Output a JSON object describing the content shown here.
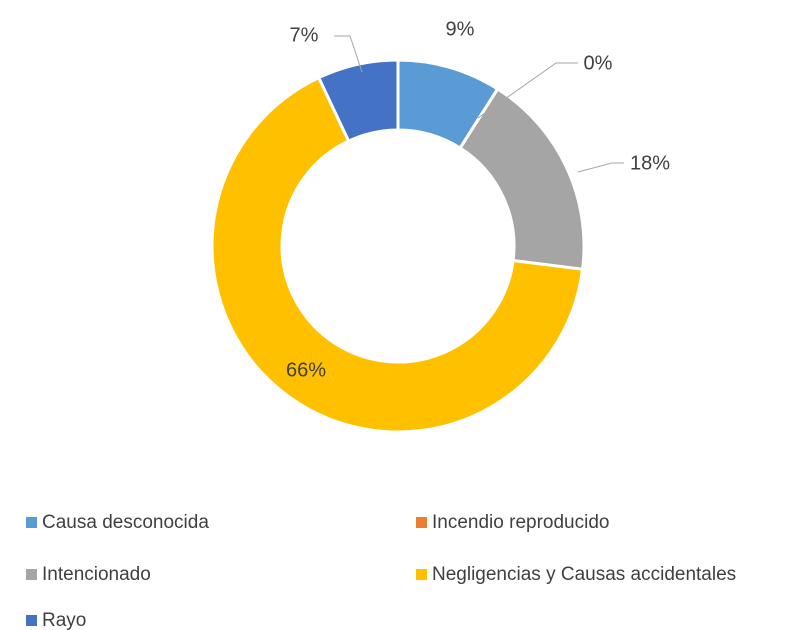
{
  "chart_data": {
    "type": "donut",
    "categories": [
      "Causa desconocida",
      "Incendio reproducido",
      "Intencionado",
      "Negligencias y Causas accidentales",
      "Rayo"
    ],
    "values": [
      9,
      0,
      18,
      66,
      7
    ],
    "value_labels": [
      "9%",
      "0%",
      "18%",
      "66%",
      "7%"
    ],
    "colors": [
      "#5b9bd5",
      "#ed7d31",
      "#a5a5a5",
      "#ffc000",
      "#4472c4"
    ],
    "legend": "bottom"
  }
}
